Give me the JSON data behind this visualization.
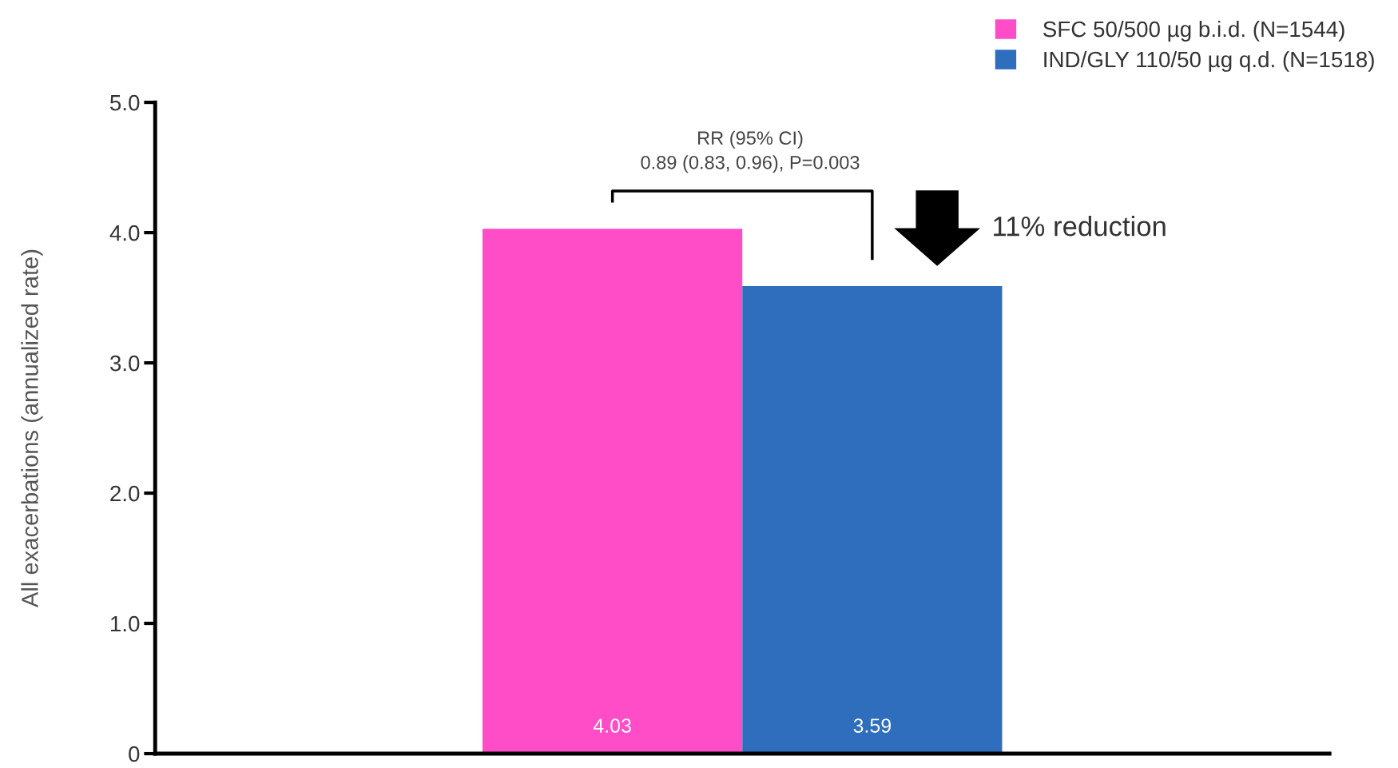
{
  "chart_data": {
    "type": "bar",
    "ylabel": "All exacerbations (annualized rate)",
    "categories": [
      null
    ],
    "series": [
      {
        "name": "SFC 50/500 µg b.i.d. (N=1544)",
        "color": "#ff4dc8",
        "values": [
          4.03
        ]
      },
      {
        "name": "IND/GLY 110/50 µg q.d. (N=1518)",
        "color": "#2e6ebd",
        "values": [
          3.59
        ]
      }
    ],
    "ylim": [
      0,
      5
    ],
    "yticks": [
      0,
      {
        "value": 1,
        "label": "1.0"
      },
      {
        "value": 2,
        "label": "2.0"
      },
      {
        "value": 3,
        "label": "3.0"
      },
      {
        "value": 4,
        "label": "4.0"
      },
      {
        "value": 5,
        "label": "5.0"
      }
    ],
    "data_labels": true,
    "legend": "top right",
    "grid": false,
    "annotations": [
      "RR (95% CI)\n0.89 (0.83, 0.96), P=0.003",
      "11% reduction"
    ]
  }
}
